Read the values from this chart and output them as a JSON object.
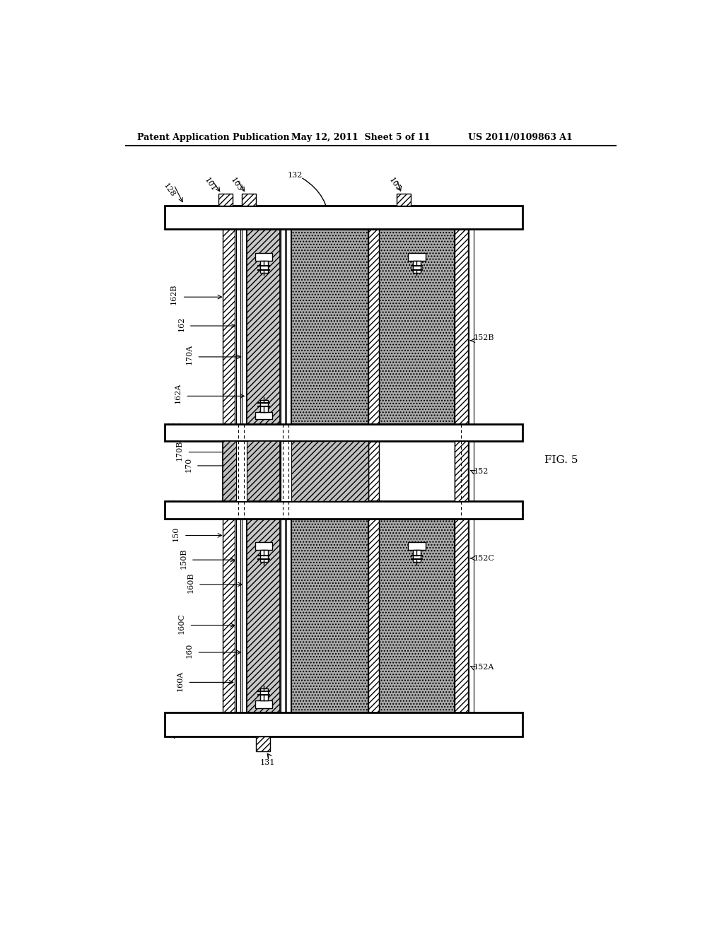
{
  "header_left": "Patent Application Publication",
  "header_mid": "May 12, 2011  Sheet 5 of 11",
  "header_right": "US 2011/0109863 A1",
  "fig_label": "FIG. 5",
  "bg": "#ffffff",
  "gray_pixel": "#aaaaaa",
  "gray_hatch": "#bbbbbb"
}
